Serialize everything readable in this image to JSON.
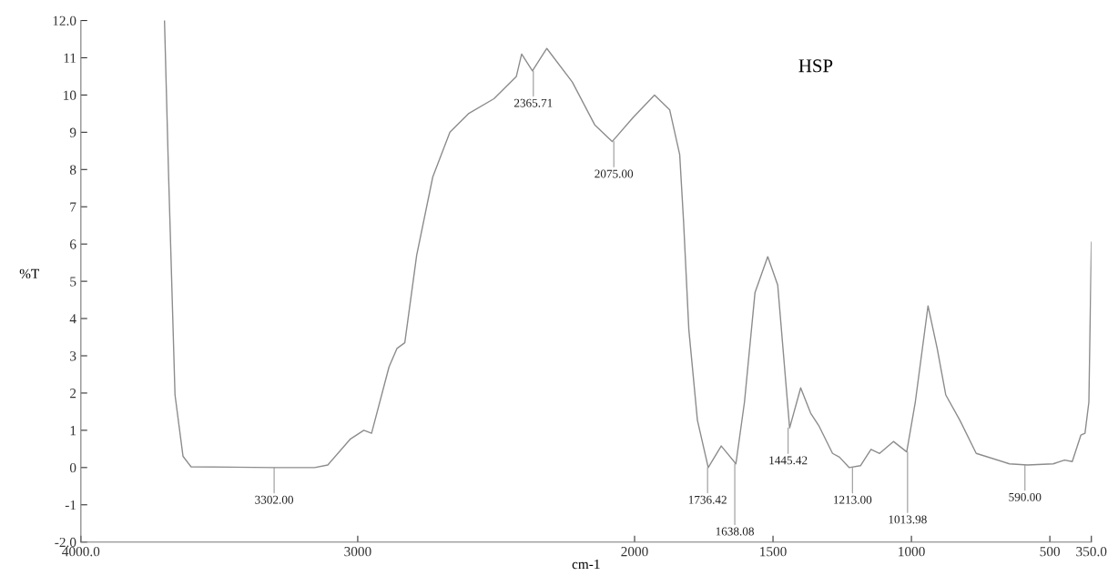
{
  "chart_data": {
    "type": "line",
    "xlabel": "cm-1",
    "ylabel": "%T",
    "x": [
      3698,
      3683,
      3660,
      3631,
      3602,
      3302,
      3156,
      3108,
      3026,
      2978,
      2950,
      2887,
      2858,
      2830,
      2787,
      2729,
      2667,
      2600,
      2508,
      2427,
      2408,
      2369,
      2317,
      2225,
      2144,
      2081,
      2005,
      1928,
      1873,
      1837,
      1823,
      1804,
      1773,
      1734,
      1687,
      1634,
      1603,
      1565,
      1519,
      1483,
      1440,
      1400,
      1364,
      1335,
      1285,
      1260,
      1225,
      1184,
      1146,
      1115,
      1065,
      1017,
      986,
      940,
      907,
      876,
      825,
      766,
      646,
      581,
      488,
      447,
      419,
      388,
      373,
      359,
      350
    ],
    "series": [
      {
        "color": "#8c8c8c",
        "values": [
          12.0,
          7.8,
          1.95,
          0.3,
          0.02,
          0.0,
          0.0,
          0.07,
          0.77,
          1.0,
          0.92,
          2.7,
          3.2,
          3.35,
          5.7,
          7.8,
          9.0,
          9.5,
          9.9,
          10.5,
          11.1,
          10.65,
          11.25,
          10.35,
          9.2,
          8.75,
          9.4,
          10.0,
          9.6,
          8.4,
          6.6,
          3.7,
          1.27,
          0.0,
          0.58,
          0.1,
          1.76,
          4.7,
          5.66,
          4.9,
          1.06,
          2.14,
          1.46,
          1.13,
          0.38,
          0.28,
          0.0,
          0.05,
          0.49,
          0.38,
          0.7,
          0.42,
          1.76,
          4.34,
          3.2,
          1.95,
          1.27,
          0.38,
          0.1,
          0.07,
          0.1,
          0.2,
          0.16,
          0.87,
          0.92,
          1.76,
          6.05
        ]
      }
    ],
    "xlim": [
      4000.0,
      350.0
    ],
    "xticks": [
      {
        "value": 4000,
        "label": "4000.0"
      },
      3000,
      2000,
      1500,
      1000,
      500,
      {
        "value": 350,
        "label": "350.0"
      }
    ],
    "ylim": [
      -2.0,
      12.0
    ],
    "yticks": [
      {
        "value": -2,
        "label": "-2.0"
      },
      -1,
      0,
      1,
      2,
      3,
      4,
      5,
      6,
      7,
      8,
      9,
      10,
      11,
      {
        "value": 12,
        "label": "12.0"
      }
    ],
    "grid": false,
    "marker": "none",
    "line_style": "solid",
    "annotations": [
      {
        "text": "3302.00",
        "x": 3302,
        "y": 0.0
      },
      {
        "text": "2365.71",
        "x": 2365.71,
        "y": 10.65
      },
      {
        "text": "2075.00",
        "x": 2075,
        "y": 8.75
      },
      {
        "text": "1736.42",
        "x": 1736.42,
        "y": 0.0
      },
      {
        "text": "1638.08",
        "x": 1638.08,
        "y": 0.1
      },
      {
        "text": "1445.42",
        "x": 1445.42,
        "y": 1.06
      },
      {
        "text": "1213.00",
        "x": 1213,
        "y": 0.0
      },
      {
        "text": "1013.98",
        "x": 1013.98,
        "y": 0.42
      },
      {
        "text": "590.00",
        "x": 590,
        "y": 0.07
      },
      "HSP"
    ]
  }
}
